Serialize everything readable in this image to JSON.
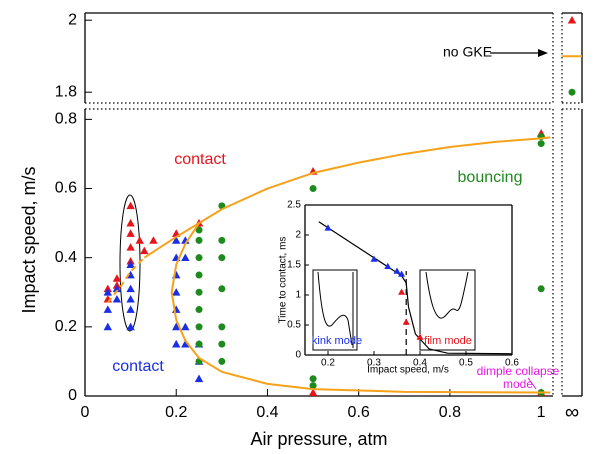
{
  "chart_data": [
    {
      "type": "scatter",
      "xlabel": "Air pressure, atm",
      "ylabel": "Impact speed, m/s",
      "xlim": [
        0,
        1.026
      ],
      "ylim": [
        0,
        0.83
      ],
      "xticks": [
        0,
        0.2,
        0.4,
        0.6,
        0.8,
        1
      ],
      "yticks": [
        0,
        0.2,
        0.4,
        0.6,
        0.8
      ],
      "series": [
        {
          "color": "#e8141c",
          "marker": "triangle",
          "x": [
            0.05,
            0.05,
            0.07,
            0.07,
            0.1,
            0.1,
            0.1,
            0.1,
            0.1,
            0.12,
            0.13,
            0.15,
            0.2,
            0.25,
            0.5,
            0.5,
            1,
            1
          ],
          "y": [
            0.31,
            0.28,
            0.34,
            0.32,
            0.55,
            0.5,
            0.47,
            0.43,
            0.39,
            0.45,
            0.42,
            0.45,
            0.47,
            0.5,
            0.65,
            0.01,
            0.76,
            0.01
          ]
        },
        {
          "color": "#1a2ee8",
          "marker": "triangle",
          "x": [
            0.05,
            0.05,
            0.05,
            0.07,
            0.07,
            0.1,
            0.1,
            0.1,
            0.1,
            0.1,
            0.1,
            0.2,
            0.2,
            0.2,
            0.2,
            0.2,
            0.2,
            0.2,
            0.22,
            0.22,
            0.22,
            0.22,
            0.25,
            0.25,
            0.25
          ],
          "y": [
            0.3,
            0.25,
            0.2,
            0.31,
            0.28,
            0.38,
            0.35,
            0.31,
            0.28,
            0.25,
            0.2,
            0.45,
            0.4,
            0.35,
            0.3,
            0.25,
            0.2,
            0.15,
            0.45,
            0.4,
            0.2,
            0.15,
            0.15,
            0.1,
            0.05
          ]
        },
        {
          "color": "#1e8a1e",
          "marker": "circle",
          "x": [
            0.25,
            0.25,
            0.25,
            0.25,
            0.25,
            0.25,
            0.25,
            0.25,
            0.25,
            0.3,
            0.3,
            0.3,
            0.3,
            0.3,
            0.3,
            0.3,
            0.5,
            0.5,
            0.5,
            1,
            1,
            1,
            1
          ],
          "y": [
            0.48,
            0.45,
            0.4,
            0.35,
            0.3,
            0.25,
            0.2,
            0.15,
            0.1,
            0.55,
            0.45,
            0.4,
            0.31,
            0.2,
            0.15,
            0.1,
            0.6,
            0.05,
            0.03,
            0.75,
            0.73,
            0.31,
            0.01
          ]
        },
        {
          "color": "#f5a21b",
          "marker": "line",
          "dash": true,
          "x": [
            0.05,
            0.08,
            0.1,
            0.13
          ],
          "y": [
            0.27,
            0.32,
            0.36,
            0.4
          ]
        },
        {
          "color": "#f5a21b",
          "marker": "line",
          "x": [
            0.13,
            0.2,
            0.25,
            0.3,
            0.4,
            0.5,
            0.6,
            0.7,
            0.8,
            0.9,
            1,
            1.02
          ],
          "y": [
            0.4,
            0.46,
            0.5,
            0.54,
            0.6,
            0.645,
            0.675,
            0.7,
            0.72,
            0.735,
            0.745,
            0.748
          ]
        },
        {
          "color": "#f5a21b",
          "marker": "line",
          "x": [
            0.25,
            0.22,
            0.2,
            0.19,
            0.2,
            0.22,
            0.25,
            0.3,
            0.4,
            0.5,
            0.7,
            1,
            1.02
          ],
          "y": [
            0.5,
            0.44,
            0.38,
            0.3,
            0.22,
            0.16,
            0.11,
            0.07,
            0.035,
            0.02,
            0.012,
            0.01,
            0.01
          ]
        }
      ],
      "annotations": [
        {
          "text": "contact",
          "color": "#e8141c"
        },
        {
          "text": "bouncing",
          "color": "#1e8a1e"
        },
        {
          "text": "contact",
          "color": "#1a2ee8"
        },
        {
          "text": "dimple collapse",
          "color": "#e619e6"
        },
        {
          "text": "mode",
          "color": "#e619e6"
        }
      ]
    },
    {
      "type": "scatter",
      "xlim": [
        0,
        1.026
      ],
      "ylim": [
        1.77,
        2.02
      ],
      "yticks": [
        1.8,
        2
      ],
      "series": [],
      "annotations": [
        {
          "text": "no GKE",
          "color": "#000000"
        }
      ]
    },
    {
      "type": "scatter",
      "categories": [
        "∞"
      ],
      "ylim": [
        1.77,
        2.02
      ],
      "series": [
        {
          "color": "#e8141c",
          "marker": "triangle",
          "values": [
            2
          ]
        },
        {
          "color": "#1e8a1e",
          "marker": "circle",
          "values": [
            1.8
          ]
        },
        {
          "color": "#f5a21b",
          "marker": "hline",
          "values": [
            1.9
          ]
        }
      ]
    },
    {
      "type": "scatter",
      "xlabel": "Impact speed, m/s",
      "ylabel": "Time to contact, ms",
      "xlim": [
        0.15,
        0.6
      ],
      "ylim": [
        0,
        2.5
      ],
      "xticks": [
        0.2,
        0.3,
        0.4,
        0.5,
        0.6
      ],
      "yticks": [
        0,
        0.5,
        1,
        1.5,
        2,
        2.5
      ],
      "series": [
        {
          "color": "#000000",
          "marker": "line",
          "x": [
            0.18,
            0.36,
            0.37,
            0.375,
            0.39,
            0.42,
            0.46,
            0.6
          ],
          "y": [
            2.22,
            1.32,
            1.2,
            0.8,
            0.35,
            0.1,
            0.03,
            0.02
          ]
        },
        {
          "color": "#000000",
          "marker": "line",
          "dash": true,
          "x": [
            0.37,
            0.37
          ],
          "y": [
            0,
            1.4
          ]
        },
        {
          "color": "#1a2ee8",
          "marker": "triangle",
          "x": [
            0.2,
            0.3,
            0.33,
            0.35,
            0.36
          ],
          "y": [
            2.12,
            1.6,
            1.48,
            1.4,
            1.35
          ]
        },
        {
          "color": "#e8141c",
          "marker": "triangle",
          "x": [
            0.36,
            0.37,
            0.4
          ],
          "y": [
            1.05,
            0.55,
            0.3
          ]
        }
      ],
      "annotations": [
        {
          "text": "kink mode",
          "color": "#1a2ee8"
        },
        {
          "text": "film mode",
          "color": "#e8141c"
        }
      ]
    }
  ]
}
